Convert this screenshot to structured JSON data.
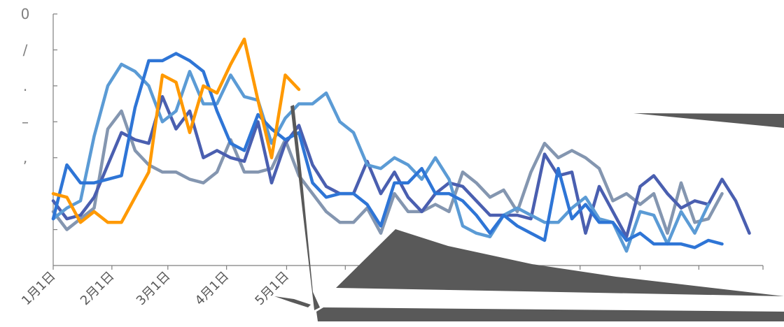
{
  "chart_data": {
    "type": "line",
    "title": "",
    "xlabel": "",
    "ylabel": "",
    "ylim": [
      0,
      7
    ],
    "y_ticks": [
      {
        "value": 1,
        "label": ""
      },
      {
        "value": 2,
        "label": ""
      },
      {
        "value": 3,
        "label": ","
      },
      {
        "value": 4,
        "label": "–"
      },
      {
        "value": 5,
        "label": "."
      },
      {
        "value": 6,
        "label": "/"
      },
      {
        "value": 7,
        "label": "0"
      }
    ],
    "x_range": [
      0,
      52
    ],
    "x_ticks": [
      {
        "x": 0,
        "label": "1月1日"
      },
      {
        "x": 4.3,
        "label": "2月1日"
      },
      {
        "x": 8.4,
        "label": "3月1日"
      },
      {
        "x": 12.7,
        "label": "4月1日"
      },
      {
        "x": 17.1,
        "label": "5月1日"
      },
      {
        "x": 21.4,
        "label": ""
      },
      {
        "x": 25.6,
        "label": ""
      },
      {
        "x": 30.0,
        "label": ""
      },
      {
        "x": 34.3,
        "label": ""
      },
      {
        "x": 38.6,
        "label": ""
      },
      {
        "x": 43.0,
        "label": ""
      },
      {
        "x": 47.3,
        "label": ""
      },
      {
        "x": 52.0,
        "label": ""
      }
    ],
    "grid": false,
    "legend": "none",
    "series": [
      {
        "color": "#ff9900",
        "values": [
          2.0,
          1.9,
          1.2,
          1.5,
          1.2,
          1.2,
          1.9,
          2.6,
          5.3,
          5.1,
          3.7,
          5.0,
          4.8,
          5.6,
          6.3,
          4.6,
          3.0,
          5.3,
          4.9
        ]
      },
      {
        "color": "#2e75d6",
        "values": [
          1.3,
          2.8,
          2.3,
          2.3,
          2.4,
          2.5,
          4.4,
          5.7,
          5.7,
          5.9,
          5.7,
          5.4,
          4.3,
          3.4,
          3.2,
          4.2,
          3.8,
          3.5,
          3.7,
          2.3,
          1.9,
          2.0,
          2.0,
          1.7,
          1.1,
          2.3,
          2.3,
          2.7,
          2.0,
          2.0,
          1.8,
          1.4,
          0.9,
          1.4,
          1.1,
          0.9,
          0.7,
          2.7,
          1.3,
          1.7,
          1.2,
          1.2,
          0.7,
          0.9,
          0.6,
          0.6,
          0.6,
          0.5,
          0.7,
          0.6
        ]
      },
      {
        "color": "#5b9bd5",
        "values": [
          1.3,
          1.6,
          1.8,
          3.6,
          5.0,
          5.6,
          5.4,
          5.0,
          4.0,
          4.3,
          5.4,
          4.5,
          4.5,
          5.3,
          4.7,
          4.6,
          3.4,
          4.1,
          4.5,
          4.5,
          4.8,
          4.0,
          3.7,
          2.8,
          2.7,
          3.0,
          2.8,
          2.4,
          3.0,
          2.4,
          1.1,
          0.9,
          0.8,
          1.4,
          1.6,
          1.4,
          1.2,
          1.2,
          1.6,
          1.9,
          1.3,
          1.2,
          0.4,
          1.5,
          1.4,
          0.6,
          1.5,
          0.9,
          1.7
        ]
      },
      {
        "color": "#4a5fb0",
        "values": [
          1.8,
          1.3,
          1.4,
          1.9,
          2.8,
          3.7,
          3.5,
          3.4,
          4.7,
          3.8,
          4.3,
          3.0,
          3.2,
          3.0,
          2.9,
          4.0,
          2.3,
          3.4,
          3.9,
          2.8,
          2.2,
          2.0,
          2.0,
          2.9,
          2.0,
          2.6,
          1.9,
          1.5,
          2.0,
          2.3,
          2.2,
          1.8,
          1.4,
          1.4,
          1.4,
          1.3,
          3.1,
          2.5,
          2.6,
          0.9,
          2.2,
          1.5,
          0.8,
          2.2,
          2.5,
          2.0,
          1.6,
          1.8,
          1.7,
          2.4,
          1.8,
          0.9
        ]
      },
      {
        "color": "#8496b0",
        "values": [
          1.5,
          1.0,
          1.3,
          1.6,
          3.8,
          4.3,
          3.2,
          2.8,
          2.6,
          2.6,
          2.4,
          2.3,
          2.6,
          3.5,
          2.6,
          2.6,
          2.7,
          3.5,
          2.5,
          2.0,
          1.5,
          1.2,
          1.2,
          1.6,
          0.9,
          2.0,
          1.5,
          1.5,
          1.7,
          1.5,
          2.6,
          2.3,
          1.9,
          2.1,
          1.5,
          2.6,
          3.4,
          3.0,
          3.2,
          3.0,
          2.7,
          1.8,
          2.0,
          1.7,
          2.0,
          0.9,
          2.3,
          1.2,
          1.3,
          2.0
        ]
      }
    ]
  }
}
